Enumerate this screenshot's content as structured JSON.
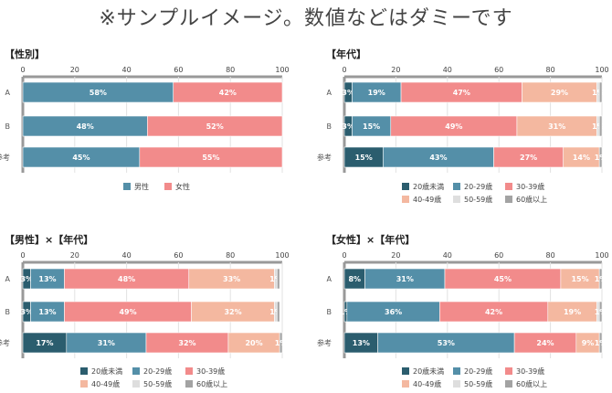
{
  "page_title": "※サンプルイメージ。数値などはダミーです",
  "colors": {
    "under20": "#2b5d6e",
    "age20s": "#548fa8",
    "age30s": "#f28b8b",
    "age40s": "#f4b8a0",
    "age50s": "#dedede",
    "over60": "#a3a3a3",
    "male": "#548fa8",
    "female": "#f28b8b"
  },
  "chart_data": [
    {
      "type": "bar",
      "stacked": true,
      "orientation": "horizontal",
      "title": "【性別】",
      "categories": [
        "A",
        "B",
        "参考"
      ],
      "xlim": [
        0,
        100
      ],
      "x_ticks": [
        "0",
        "20",
        "40",
        "60",
        "80",
        "100"
      ],
      "series": [
        {
          "name": "男性",
          "values": [
            58,
            48,
            45
          ],
          "labels": [
            "58%",
            "48%",
            "45%"
          ],
          "color_key": "male"
        },
        {
          "name": "女性",
          "values": [
            42,
            52,
            55
          ],
          "labels": [
            "42%",
            "52%",
            "55%"
          ],
          "color_key": "female"
        }
      ],
      "legend_position": "bottom"
    },
    {
      "type": "bar",
      "stacked": true,
      "orientation": "horizontal",
      "title": "【年代】",
      "categories": [
        "A",
        "B",
        "参考"
      ],
      "xlim": [
        0,
        100
      ],
      "x_ticks": [
        "0",
        "20",
        "40",
        "60",
        "80",
        "100"
      ],
      "series": [
        {
          "name": "20歳未満",
          "values": [
            3,
            3,
            15
          ],
          "labels": [
            "3%",
            "3%",
            "15%"
          ],
          "color_key": "under20"
        },
        {
          "name": "20-29歳",
          "values": [
            19,
            15,
            43
          ],
          "labels": [
            "19%",
            "15%",
            "43%"
          ],
          "color_key": "age20s"
        },
        {
          "name": "30-39歳",
          "values": [
            47,
            49,
            27
          ],
          "labels": [
            "47%",
            "49%",
            "27%"
          ],
          "color_key": "age30s"
        },
        {
          "name": "40-49歳",
          "values": [
            29,
            31,
            14
          ],
          "labels": [
            "29%",
            "31%",
            "14%"
          ],
          "color_key": "age40s"
        },
        {
          "name": "50-59歳",
          "values": [
            1,
            1,
            0
          ],
          "labels": [
            "1%",
            "1%",
            ""
          ],
          "color_key": "age50s"
        },
        {
          "name": "60歳以上",
          "values": [
            1,
            1,
            1
          ],
          "labels": [
            "",
            "",
            "1%"
          ],
          "color_key": "over60"
        }
      ],
      "legend_position": "bottom"
    },
    {
      "type": "bar",
      "stacked": true,
      "orientation": "horizontal",
      "title": "【男性】×【年代】",
      "categories": [
        "A",
        "B",
        "参考"
      ],
      "xlim": [
        0,
        100
      ],
      "x_ticks": [
        "0",
        "20",
        "40",
        "60",
        "80",
        "100"
      ],
      "series": [
        {
          "name": "20歳未満",
          "values": [
            3,
            3,
            17
          ],
          "labels": [
            "3%",
            "3%",
            "17%"
          ],
          "color_key": "under20"
        },
        {
          "name": "20-29歳",
          "values": [
            13,
            13,
            31
          ],
          "labels": [
            "13%",
            "13%",
            "31%"
          ],
          "color_key": "age20s"
        },
        {
          "name": "30-39歳",
          "values": [
            48,
            49,
            32
          ],
          "labels": [
            "48%",
            "49%",
            "32%"
          ],
          "color_key": "age30s"
        },
        {
          "name": "40-49歳",
          "values": [
            33,
            32,
            20
          ],
          "labels": [
            "33%",
            "32%",
            "20%"
          ],
          "color_key": "age40s"
        },
        {
          "name": "50-59歳",
          "values": [
            1,
            1,
            0
          ],
          "labels": [
            "1%",
            "1%",
            ""
          ],
          "color_key": "age50s"
        },
        {
          "name": "60歳以上",
          "values": [
            1,
            1,
            1
          ],
          "labels": [
            "",
            "",
            "1%"
          ],
          "color_key": "over60"
        }
      ],
      "legend_position": "bottom"
    },
    {
      "type": "bar",
      "stacked": true,
      "orientation": "horizontal",
      "title": "【女性】×【年代】",
      "categories": [
        "A",
        "B",
        "参考"
      ],
      "xlim": [
        0,
        100
      ],
      "x_ticks": [
        "0",
        "20",
        "40",
        "60",
        "80",
        "100"
      ],
      "series": [
        {
          "name": "20歳未満",
          "values": [
            8,
            1,
            13
          ],
          "labels": [
            "8%",
            "1%",
            "13%"
          ],
          "color_key": "under20"
        },
        {
          "name": "20-29歳",
          "values": [
            31,
            36,
            53
          ],
          "labels": [
            "31%",
            "36%",
            "53%"
          ],
          "color_key": "age20s"
        },
        {
          "name": "30-39歳",
          "values": [
            45,
            42,
            24
          ],
          "labels": [
            "45%",
            "42%",
            "24%"
          ],
          "color_key": "age30s"
        },
        {
          "name": "40-49歳",
          "values": [
            15,
            19,
            9
          ],
          "labels": [
            "15%",
            "19%",
            "9%"
          ],
          "color_key": "age40s"
        },
        {
          "name": "50-59歳",
          "values": [
            0,
            1,
            0
          ],
          "labels": [
            "",
            "",
            ""
          ],
          "color_key": "age50s"
        },
        {
          "name": "60歳以上",
          "values": [
            1,
            1,
            1
          ],
          "labels": [
            "1%",
            "1%",
            "1%"
          ],
          "color_key": "over60"
        }
      ],
      "legend_position": "bottom"
    }
  ]
}
